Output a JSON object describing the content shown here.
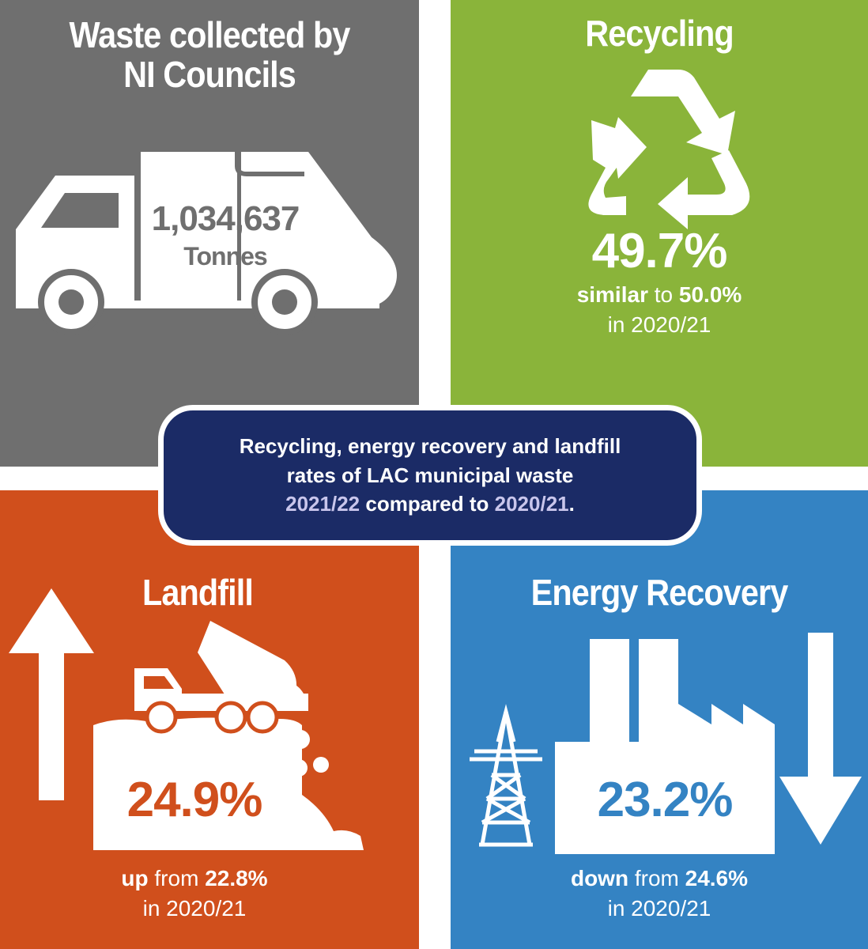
{
  "waste": {
    "title_line1": "Waste collected by",
    "title_line2": "NI Councils",
    "tonnes_value": "1,034,637",
    "tonnes_unit": "Tonnes",
    "icon": "garbage-truck-icon",
    "color": "#6f6f6f"
  },
  "recycling": {
    "title": "Recycling",
    "icon": "recycle-icon",
    "value": "49.7%",
    "comparison_word": "similar",
    "comparison_connector": "to",
    "previous_value": "50.0%",
    "previous_period": "in 2020/21",
    "color": "#8ab43a"
  },
  "center": {
    "line1": "Recycling, energy recovery and landfill",
    "line2": "rates of LAC municipal waste",
    "year_current": "2021/22",
    "compared_text": "compared to",
    "year_previous": "2020/21",
    "end_punct": "."
  },
  "landfill": {
    "title": "Landfill",
    "icon": "dump-truck-landfill-icon",
    "trend_icon": "arrow-up-icon",
    "value": "24.9%",
    "comparison_word": "up",
    "comparison_connector": "from",
    "previous_value": "22.8%",
    "previous_period": "in 2020/21",
    "color": "#d04f1c"
  },
  "energy": {
    "title": "Energy Recovery",
    "icon": "factory-pylon-icon",
    "trend_icon": "arrow-down-icon",
    "value": "23.2%",
    "comparison_word": "down",
    "comparison_connector": "from",
    "previous_value": "24.6%",
    "previous_period": "in 2020/21",
    "color": "#3483c3"
  }
}
